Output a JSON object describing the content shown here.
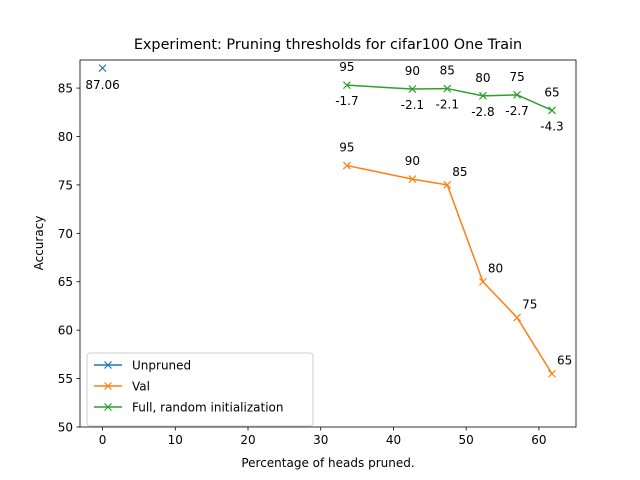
{
  "chart_data": {
    "type": "line",
    "title": "Experiment: Pruning thresholds for cifar100 One Train",
    "xlabel": "Percentage of heads pruned.",
    "ylabel": "Accuracy",
    "xlim": [
      -3.1,
      65.1
    ],
    "ylim": [
      50,
      87.9
    ],
    "xticks": [
      0,
      10,
      20,
      30,
      40,
      50,
      60
    ],
    "yticks": [
      50,
      55,
      60,
      65,
      70,
      75,
      80,
      85
    ],
    "grid": false,
    "legend_position": "lower-left",
    "series": [
      {
        "name": "Unpruned",
        "color": "#1f77b4",
        "marker": "x",
        "points": [
          {
            "x": 0,
            "y": 87.06,
            "label": "87.06",
            "label_pos": "below"
          }
        ]
      },
      {
        "name": "Val",
        "color": "#ff7f0e",
        "marker": "x",
        "points": [
          {
            "x": 33.6,
            "y": 77.0,
            "label": "95",
            "label_pos": "above"
          },
          {
            "x": 42.6,
            "y": 75.6,
            "label": "90",
            "label_pos": "above"
          },
          {
            "x": 47.4,
            "y": 75.0,
            "label": "85",
            "label_pos": "above-right"
          },
          {
            "x": 52.3,
            "y": 65.0,
            "label": "80",
            "label_pos": "above-right"
          },
          {
            "x": 57.0,
            "y": 61.3,
            "label": "75",
            "label_pos": "above-right"
          },
          {
            "x": 61.8,
            "y": 55.5,
            "label": "65",
            "label_pos": "above-right"
          }
        ]
      },
      {
        "name": "Full, random initialization",
        "color": "#2ca02c",
        "marker": "x",
        "points": [
          {
            "x": 33.6,
            "y": 85.3,
            "label": "95",
            "delta": "-1.7"
          },
          {
            "x": 42.6,
            "y": 84.9,
            "label": "90",
            "delta": "-2.1"
          },
          {
            "x": 47.4,
            "y": 84.95,
            "label": "85",
            "delta": "-2.1"
          },
          {
            "x": 52.3,
            "y": 84.2,
            "label": "80",
            "delta": "-2.8"
          },
          {
            "x": 57.0,
            "y": 84.3,
            "label": "75",
            "delta": "-2.7"
          },
          {
            "x": 61.8,
            "y": 82.7,
            "label": "65",
            "delta": "-4.3"
          }
        ]
      }
    ]
  }
}
